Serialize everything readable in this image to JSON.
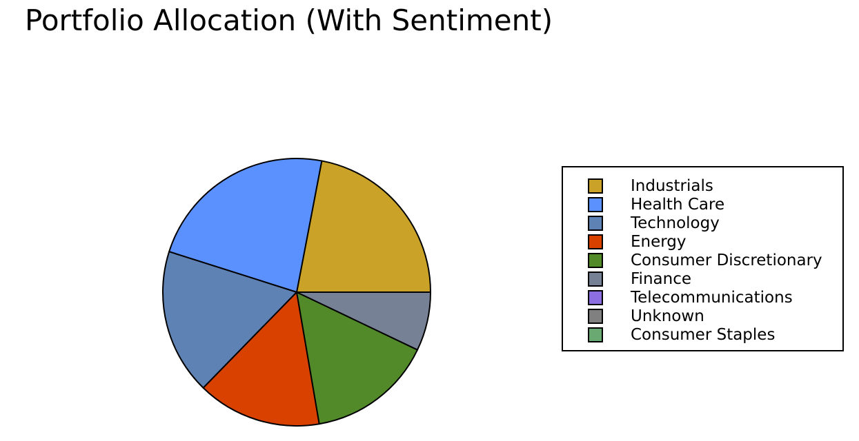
{
  "chart_data": {
    "type": "pie",
    "title": "Portfolio Allocation (With Sentiment)",
    "start_angle_deg": 0,
    "direction": "counterclockwise",
    "slices": [
      {
        "label": "Industrials",
        "value": 22.0,
        "color": "#c9a227"
      },
      {
        "label": "Health Care",
        "value": 23.1,
        "color": "#5b91ff"
      },
      {
        "label": "Technology",
        "value": 17.6,
        "color": "#5f82b5"
      },
      {
        "label": "Energy",
        "value": 15.0,
        "color": "#d94100"
      },
      {
        "label": "Consumer Discretionary",
        "value": 15.2,
        "color": "#528a2a"
      },
      {
        "label": "Finance",
        "value": 7.1,
        "color": "#778195"
      },
      {
        "label": "Telecommunications",
        "value": 0.0,
        "color": "#8c6ee0"
      },
      {
        "label": "Unknown",
        "value": 0.0,
        "color": "#808080"
      },
      {
        "label": "Consumer Staples",
        "value": 0.0,
        "color": "#6aaa72"
      }
    ],
    "legend_position": "right",
    "grid": false
  }
}
